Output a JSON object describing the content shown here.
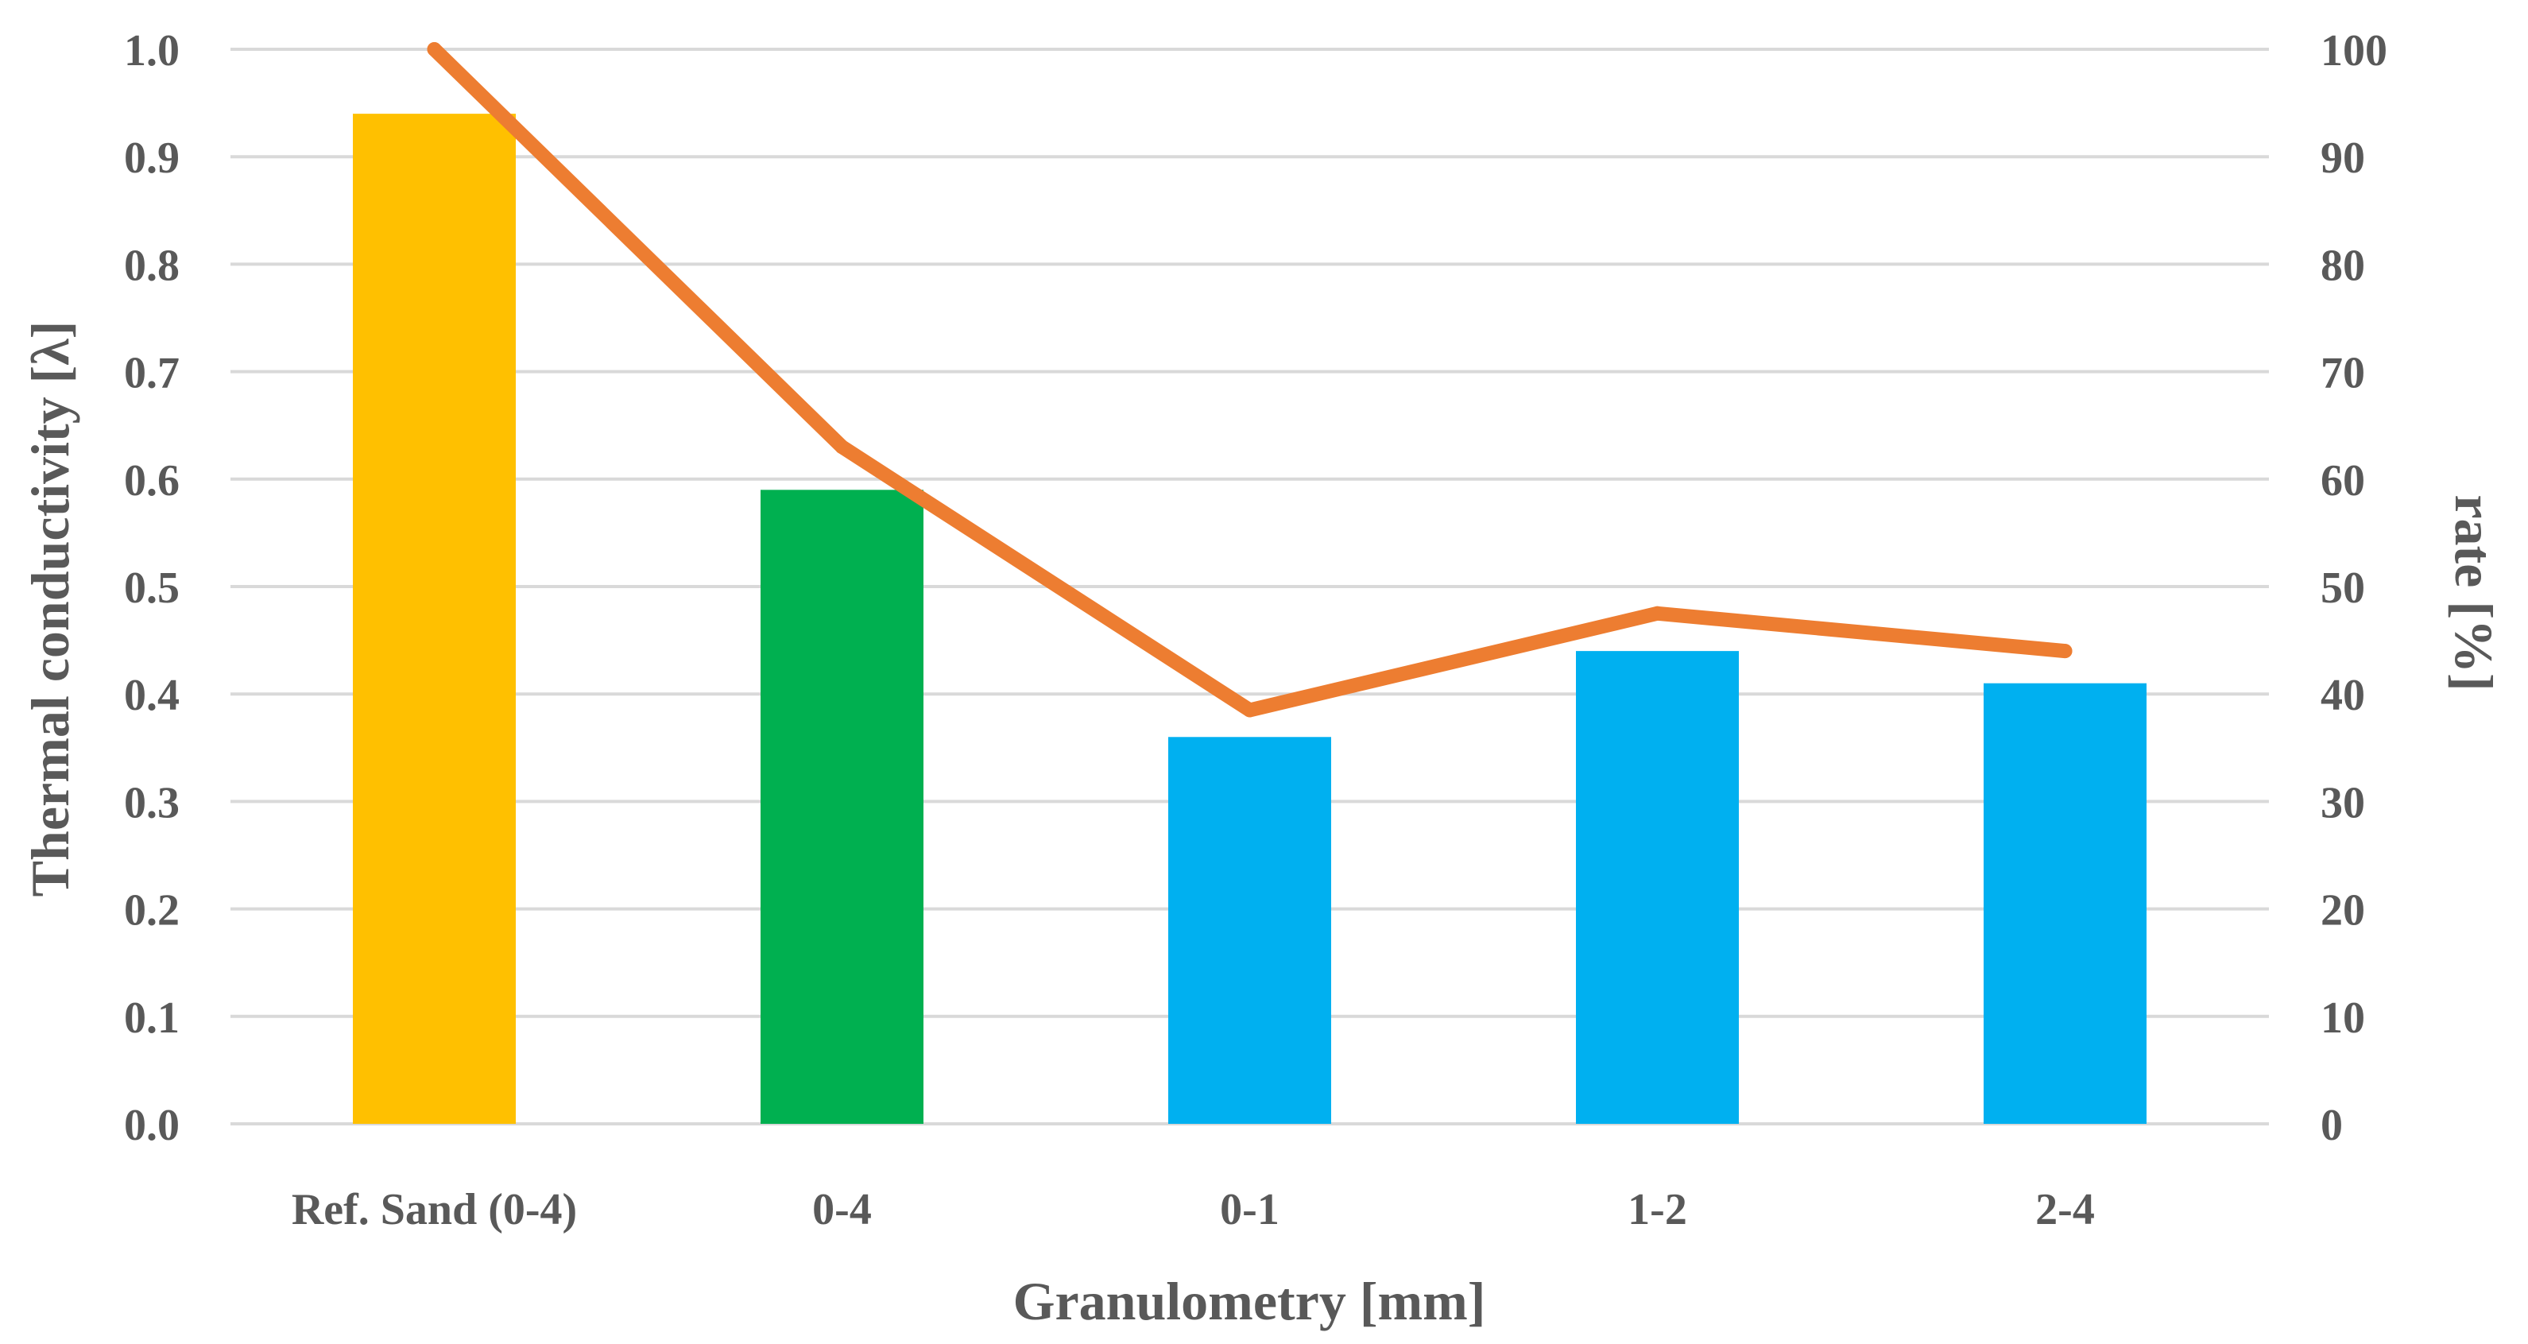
{
  "chart_data": {
    "type": "bar+line",
    "categories": [
      "Ref. Sand (0-4)",
      "0-4",
      "0-1",
      "1-2",
      "2-4"
    ],
    "series": [
      {
        "name": "Thermal conductivity",
        "kind": "bar",
        "axis": "left",
        "values": [
          0.94,
          0.59,
          0.36,
          0.44,
          0.41
        ],
        "colors": [
          "#FFC000",
          "#00B050",
          "#00B0F0",
          "#00B0F0",
          "#00B0F0"
        ]
      },
      {
        "name": "rate",
        "kind": "line",
        "axis": "right",
        "values": [
          100,
          63,
          38.5,
          47.5,
          44
        ],
        "color": "#ED7D31"
      }
    ],
    "xlabel": "Granulometry [mm]",
    "ylabel_left": "Thermal conductivity [λ]",
    "ylabel_right": "rate [%]",
    "ylim_left": [
      0,
      1.0
    ],
    "ylim_right": [
      0,
      100
    ],
    "yticks_left": [
      "0.0",
      "0.1",
      "0.2",
      "0.3",
      "0.4",
      "0.5",
      "0.6",
      "0.7",
      "0.8",
      "0.9",
      "1.0"
    ],
    "yticks_right": [
      "0",
      "10",
      "20",
      "30",
      "40",
      "50",
      "60",
      "70",
      "80",
      "90",
      "100"
    ],
    "grid": true,
    "gridline_color": "#d9d9d9",
    "label_color": "#595959"
  }
}
